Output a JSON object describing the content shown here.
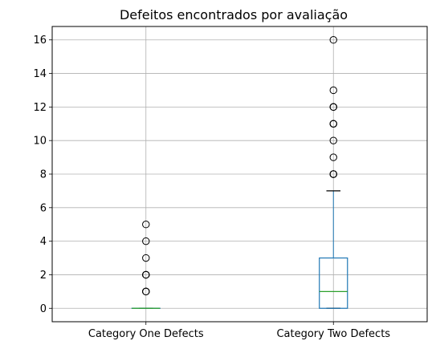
{
  "chart_data": {
    "type": "box",
    "title": "Defeitos encontrados por avaliação",
    "xlabel": "",
    "ylabel": "",
    "ylim": [
      -0.8,
      16.8
    ],
    "yticks": [
      0,
      2,
      4,
      6,
      8,
      10,
      12,
      14,
      16
    ],
    "grid": true,
    "categories": [
      "Category One Defects",
      "Category Two Defects"
    ],
    "boxes": [
      {
        "q1": 0,
        "median": 0,
        "q3": 0,
        "whisker_low": 0,
        "whisker_high": 0,
        "outliers": [
          1,
          1,
          1,
          2,
          2,
          2,
          3,
          4,
          5
        ]
      },
      {
        "q1": 0,
        "median": 1,
        "q3": 3,
        "whisker_low": 0,
        "whisker_high": 7,
        "outliers": [
          8,
          8,
          8,
          9,
          10,
          11,
          11,
          11,
          12,
          12,
          12,
          13,
          16
        ]
      }
    ],
    "colors": {
      "box": "#1f77b4",
      "median": "#2ca02c",
      "whisker": "#000000",
      "outlier": "#000000",
      "grid": "#b0b0b0"
    }
  }
}
